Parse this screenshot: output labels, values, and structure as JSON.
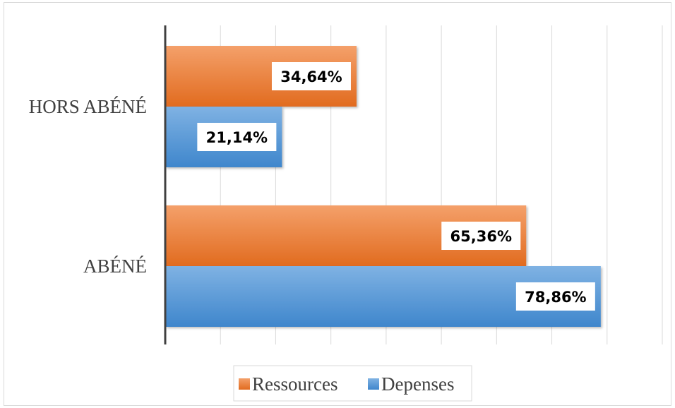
{
  "chart_data": {
    "type": "bar",
    "orientation": "horizontal",
    "categories": [
      "HORS ABÉNÉ",
      "ABÉNÉ"
    ],
    "series": [
      {
        "name": "Ressources",
        "color": "#ed7d31",
        "values": [
          34.64,
          65.36
        ],
        "labels": [
          "34,64%",
          "65,36%"
        ]
      },
      {
        "name": "Depenses",
        "color": "#5b9bd5",
        "values": [
          21.14,
          78.86
        ],
        "labels": [
          "21,14%",
          "78,86%"
        ]
      }
    ],
    "xlim": [
      0,
      90
    ],
    "grid": true,
    "legend": "bottom"
  }
}
